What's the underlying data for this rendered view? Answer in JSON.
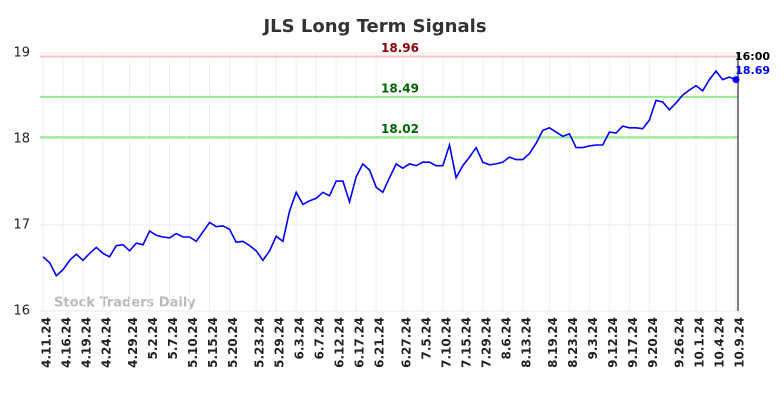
{
  "chart_data": {
    "type": "line",
    "title": "JLS Long Term Signals",
    "categories": [
      "4.11.24",
      null,
      null,
      "4.16.24",
      null,
      null,
      "4.19.24",
      null,
      null,
      "4.24.24",
      null,
      null,
      null,
      "4.29.24",
      null,
      null,
      "5.2.24",
      null,
      null,
      "5.7.24",
      null,
      null,
      "5.10.24",
      null,
      null,
      "5.15.24",
      null,
      null,
      "5.20.24",
      null,
      null,
      null,
      "5.23.24",
      null,
      null,
      "5.29.24",
      null,
      null,
      "6.3.24",
      null,
      null,
      "6.7.24",
      null,
      null,
      "6.12.24",
      null,
      null,
      "6.17.24",
      null,
      null,
      "6.21.24",
      null,
      null,
      null,
      "6.27.24",
      null,
      null,
      "7.5.24",
      null,
      null,
      "7.10.24",
      null,
      null,
      "7.15.24",
      null,
      null,
      "7.29.24",
      null,
      null,
      "8.6.24",
      null,
      null,
      "8.13.24",
      null,
      null,
      null,
      "8.19.24",
      null,
      null,
      "8.23.24",
      null,
      null,
      "9.3.24",
      null,
      null,
      "9.12.24",
      null,
      null,
      "9.17.24",
      null,
      null,
      "9.20.24",
      null,
      null,
      null,
      "9.26.24",
      null,
      null,
      "10.1.24",
      null,
      null,
      "10.4.24",
      null,
      null,
      "10.9.24"
    ],
    "values": [
      16.63,
      16.56,
      16.41,
      16.48,
      16.59,
      16.66,
      16.59,
      16.67,
      16.74,
      16.67,
      16.63,
      16.76,
      16.77,
      16.7,
      16.79,
      16.77,
      16.93,
      16.88,
      16.86,
      16.85,
      16.9,
      16.86,
      16.86,
      16.81,
      16.92,
      17.03,
      16.98,
      16.99,
      16.95,
      16.8,
      16.81,
      16.76,
      16.7,
      16.59,
      16.7,
      16.87,
      16.81,
      17.16,
      17.38,
      17.24,
      17.28,
      17.31,
      17.38,
      17.34,
      17.51,
      17.51,
      17.27,
      17.56,
      17.71,
      17.64,
      17.44,
      17.38,
      17.55,
      17.71,
      17.66,
      17.71,
      17.69,
      17.73,
      17.73,
      17.69,
      17.69,
      17.93,
      17.55,
      17.69,
      17.79,
      17.9,
      17.73,
      17.7,
      17.71,
      17.73,
      17.79,
      17.76,
      17.76,
      17.83,
      17.95,
      18.1,
      18.13,
      18.08,
      18.03,
      18.06,
      17.9,
      17.9,
      17.92,
      17.93,
      17.93,
      18.08,
      18.07,
      18.15,
      18.13,
      18.13,
      18.12,
      18.22,
      18.45,
      18.43,
      18.34,
      18.42,
      18.51,
      18.57,
      18.62,
      18.56,
      18.69,
      18.79,
      18.69,
      18.72,
      18.69
    ],
    "color": "#0000ff",
    "ylim": [
      16,
      19
    ],
    "yticks": [
      16,
      17,
      18,
      19
    ],
    "grid": true,
    "reference_lines": [
      {
        "value": 18.96,
        "color": "#ffc0c0",
        "label_color": "#8b0000"
      },
      {
        "value": 18.49,
        "color": "#90ee90",
        "label_color": "#006400"
      },
      {
        "value": 18.02,
        "color": "#90ee90",
        "label_color": "#006400"
      }
    ],
    "last_time": "16:00",
    "watermark": "Stock Traders Daily"
  }
}
